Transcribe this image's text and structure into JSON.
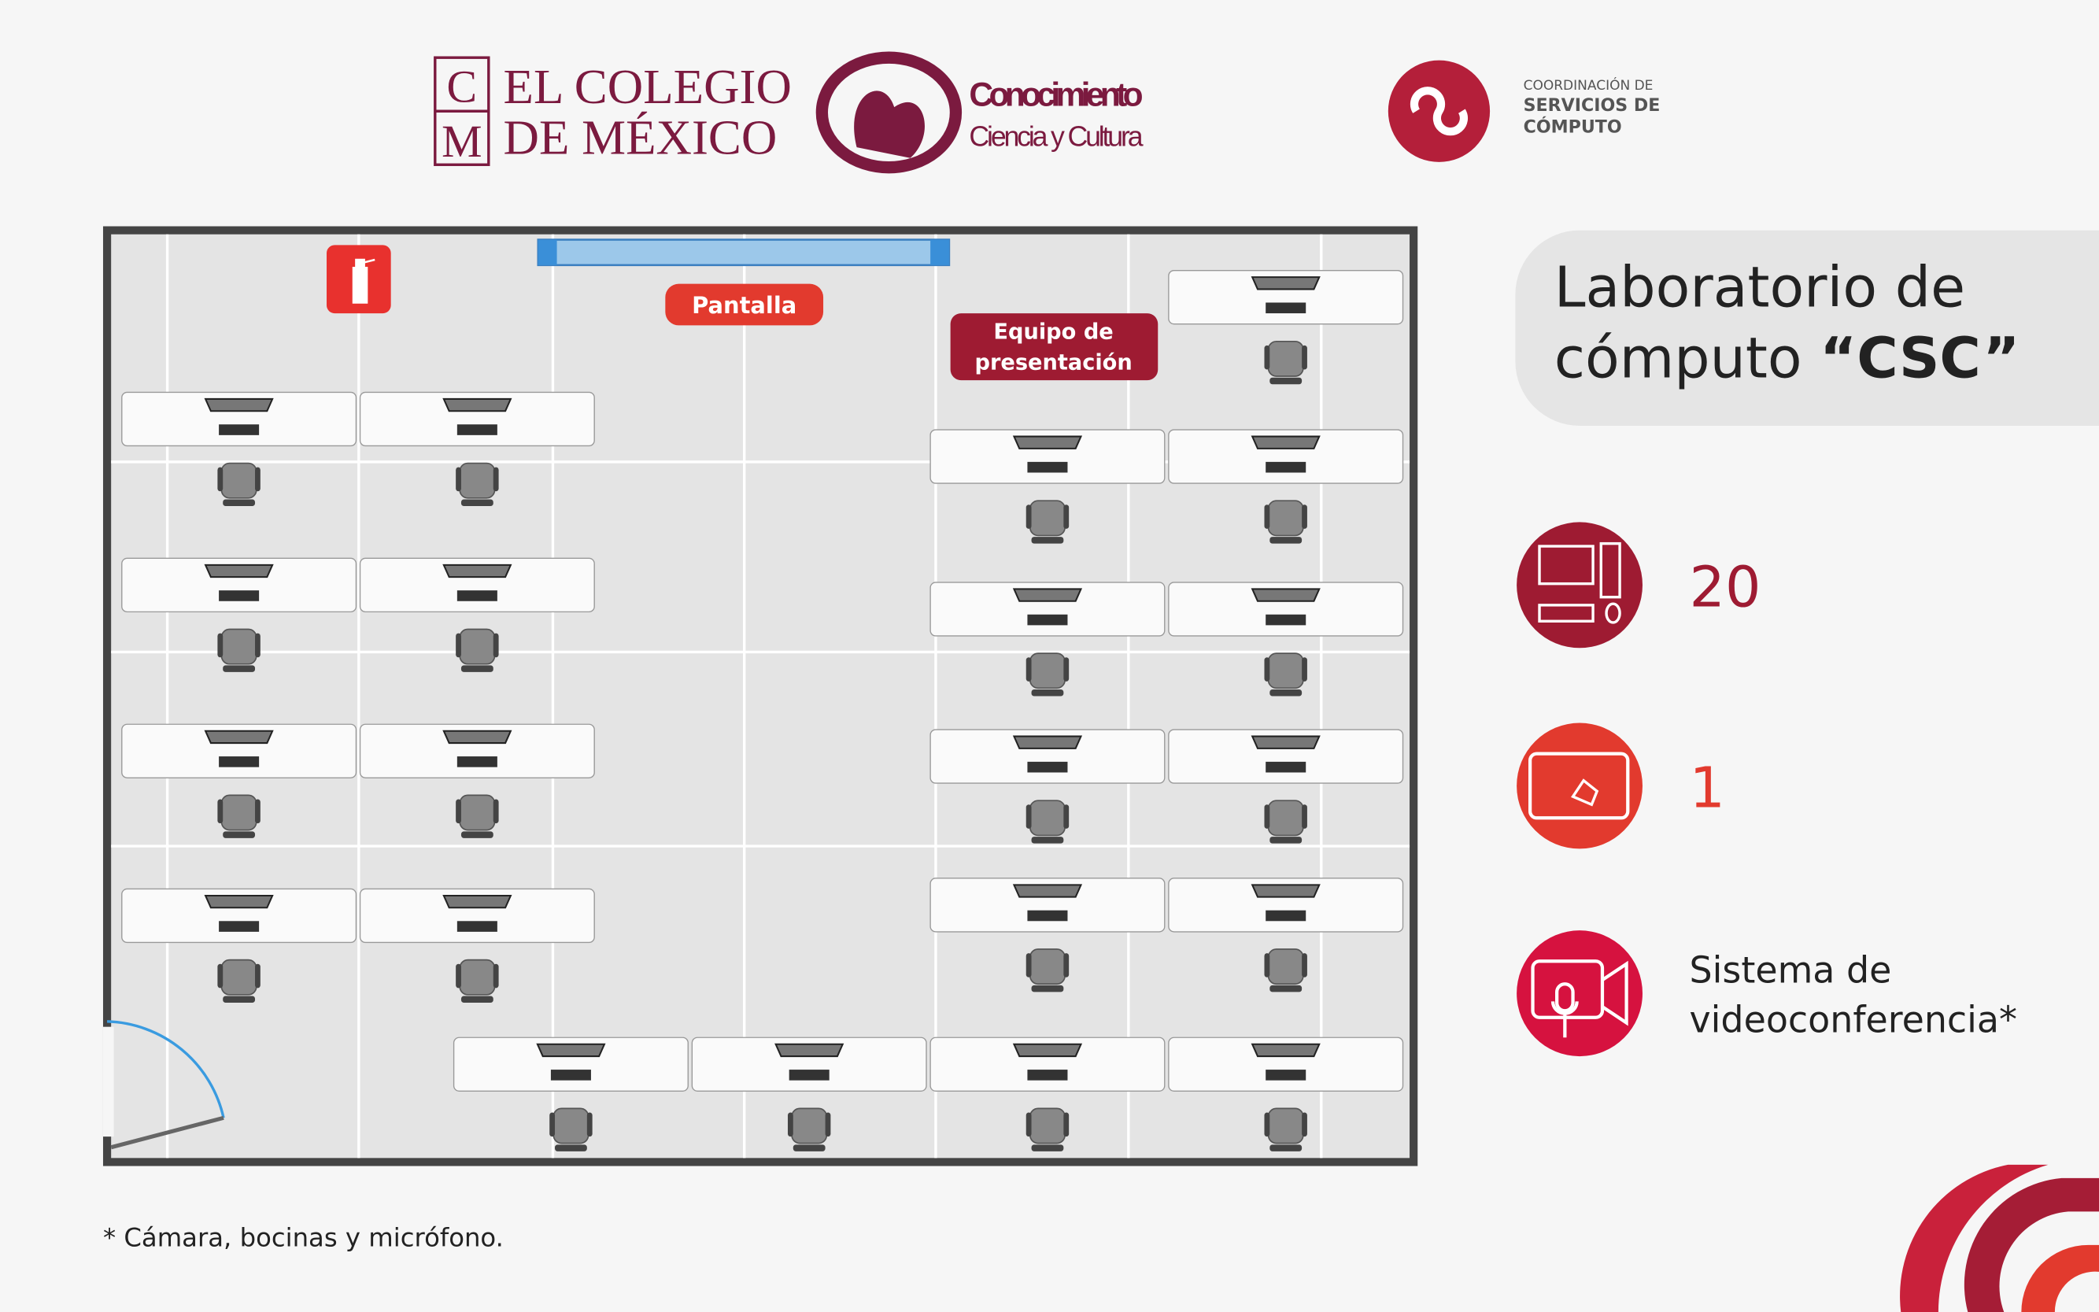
{
  "header": {
    "cm_logo": {
      "letters": [
        "C",
        "M"
      ],
      "line1": "EL COLEGIO",
      "line2": "DE MÉXICO"
    },
    "conocimiento": {
      "title": "Conocimiento",
      "subtitle": "Ciencia y Cultura"
    },
    "csc_logo": {
      "line1": "COORDINACIÓN DE",
      "line2": "SERVICIOS DE",
      "line3": "CÓMPUTO"
    }
  },
  "floor_plan": {
    "screen_label": "Pantalla",
    "presenter_label": [
      "Equipo de",
      "presentación"
    ]
  },
  "panel": {
    "title_line1": "Laboratorio de",
    "title_line2": "cómputo",
    "title_name": "“CSC”",
    "stats": [
      {
        "text": "20"
      },
      {
        "text": "1"
      },
      {
        "lines": [
          "Sistema de",
          "videoconferencia*"
        ]
      }
    ]
  },
  "footnote": "*  Cámara, bocinas y micrófono."
}
